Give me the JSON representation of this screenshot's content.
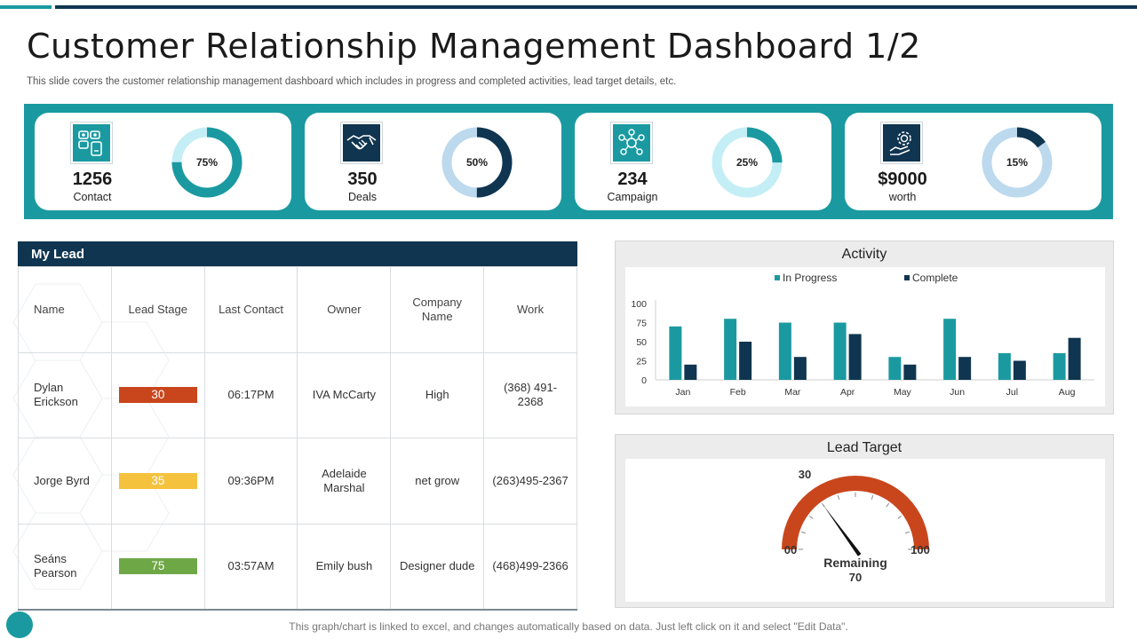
{
  "header": {
    "title": "Customer Relationship Management Dashboard 1/2",
    "subtitle": "This slide covers the customer relationship management dashboard which includes in progress and completed activities, lead target details, etc."
  },
  "colors": {
    "teal": "#1a9aa0",
    "navy": "#0f3550",
    "light_blue": "#bcd9ee",
    "light_cyan": "#c4eef6",
    "orange_red": "#c9461d",
    "yellow": "#f5c23e",
    "green": "#6ea846"
  },
  "kpis": [
    {
      "value": "1256",
      "label": "Contact",
      "percent": 75,
      "percent_label": "75%",
      "icon": "contact-icon",
      "ring_color": "#1a9aa0",
      "track_color": "#c4eef6"
    },
    {
      "value": "350",
      "label": "Deals",
      "percent": 50,
      "percent_label": "50%",
      "icon": "handshake-icon",
      "ring_color": "#0f3550",
      "track_color": "#bcd9ee"
    },
    {
      "value": "234",
      "label": "Campaign",
      "percent": 25,
      "percent_label": "25%",
      "icon": "campaign-icon",
      "ring_color": "#1a9aa0",
      "track_color": "#c4eef6"
    },
    {
      "value": "$9000",
      "label": "worth",
      "percent": 15,
      "percent_label": "15%",
      "icon": "money-gear-icon",
      "ring_color": "#0f3550",
      "track_color": "#bcd9ee"
    }
  ],
  "lead": {
    "title": "My Lead",
    "columns": [
      "Name",
      "Lead Stage",
      "Last Contact",
      "Owner",
      "Company Name",
      "Work"
    ],
    "rows": [
      {
        "name": "Dylan Erickson",
        "stage": "30",
        "stage_color": "#c9461d",
        "last_contact": "06:17PM",
        "owner": "IVA McCarty",
        "company": "High",
        "work": "(368) 491-2368"
      },
      {
        "name": "Jorge Byrd",
        "stage": "35",
        "stage_color": "#f5c23e",
        "last_contact": "09:36PM",
        "owner": "Adelaide Marshal",
        "company": "net grow",
        "work": "(263)495-2367"
      },
      {
        "name": "Seáns Pearson",
        "stage": "75",
        "stage_color": "#6ea846",
        "last_contact": "03:57AM",
        "owner": "Emily bush",
        "company": "Designer dude",
        "work": "(468)499-2366"
      }
    ]
  },
  "activity": {
    "title": "Activity"
  },
  "lead_target": {
    "title": "Lead Target",
    "value_label": "30",
    "min_label": "00",
    "max_label": "100",
    "remaining_label": "Remaining",
    "remaining_value": "70",
    "value": 30,
    "min": 0,
    "max": 100
  },
  "chart_data": {
    "type": "bar",
    "title": "Activity",
    "categories": [
      "Jan",
      "Feb",
      "Mar",
      "Apr",
      "May",
      "Jun",
      "Jul",
      "Aug"
    ],
    "series": [
      {
        "name": "In Progress",
        "color": "#1a9aa0",
        "values": [
          70,
          80,
          75,
          75,
          30,
          80,
          35,
          35
        ]
      },
      {
        "name": "Complete",
        "color": "#0f3550",
        "values": [
          20,
          50,
          30,
          60,
          20,
          30,
          25,
          55
        ]
      }
    ],
    "ylim": [
      0,
      100
    ],
    "yticks": [
      "0",
      "25",
      "50",
      "75",
      "100"
    ],
    "legend": "top",
    "grid": false
  },
  "footer": {
    "note": "This graph/chart is linked to excel, and changes automatically based on data. Just left click on it and select \"Edit Data\"."
  }
}
